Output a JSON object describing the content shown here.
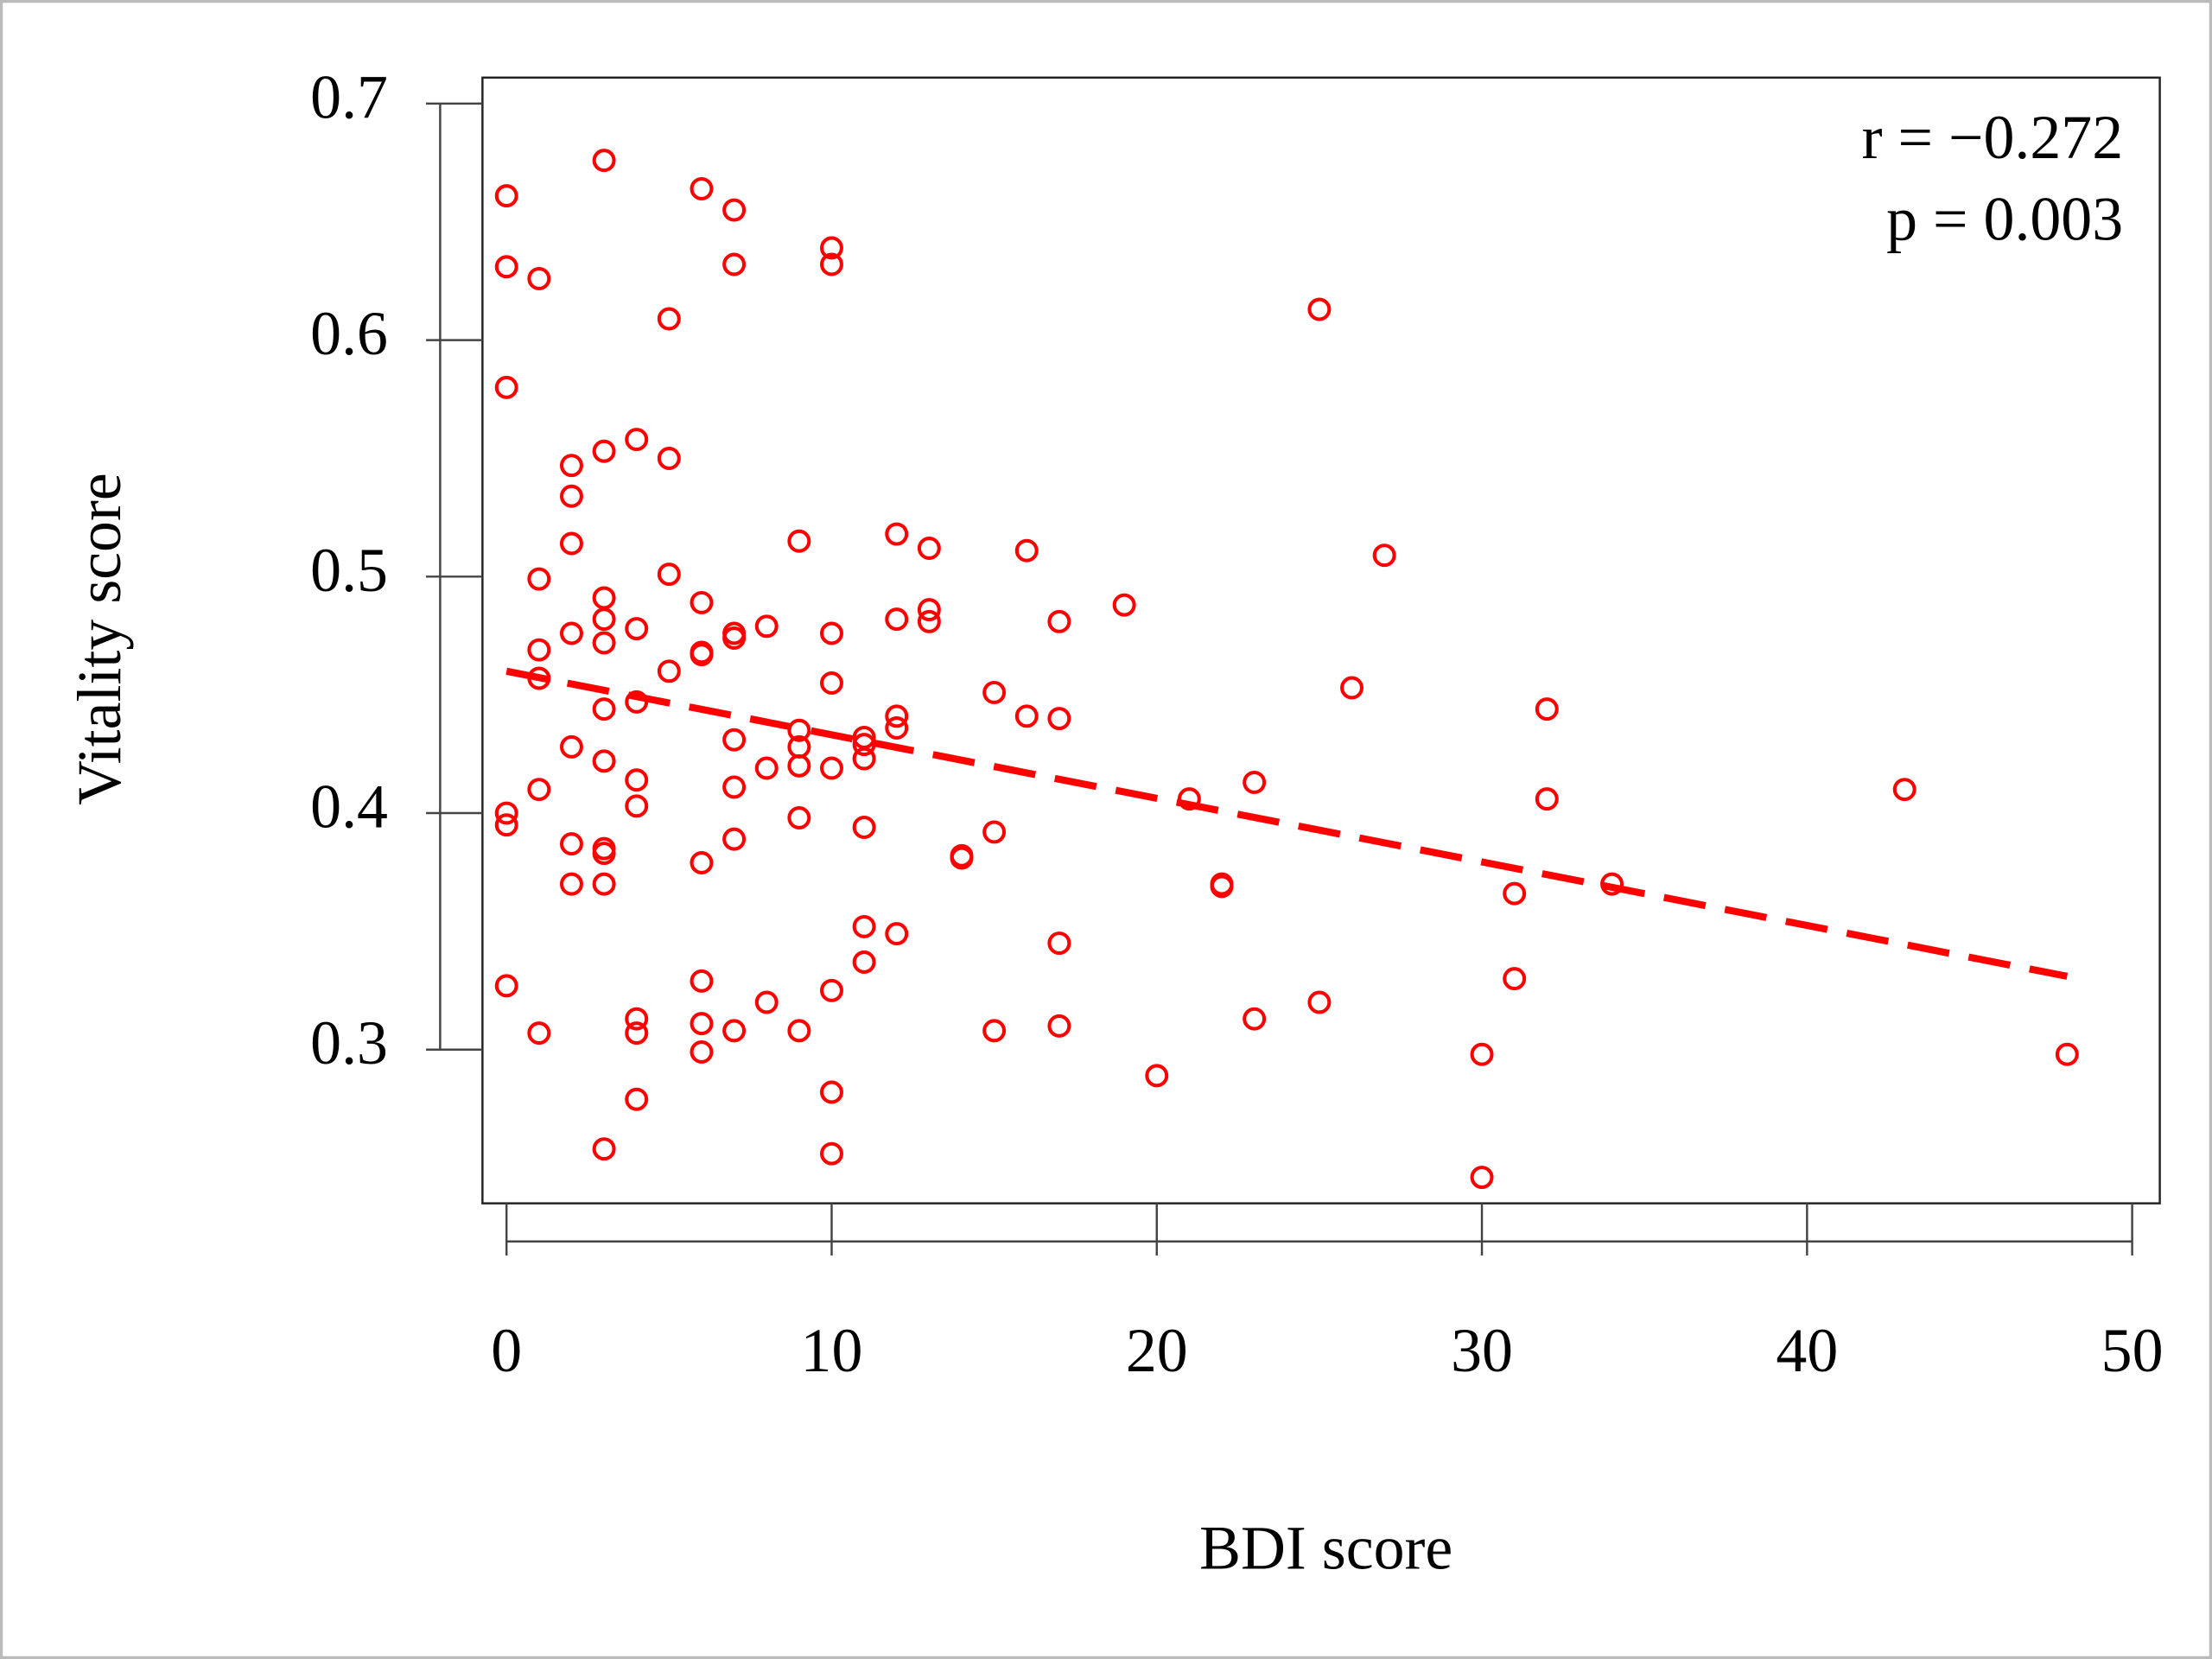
{
  "chart_data": {
    "type": "scatter",
    "x_label": "BDI score",
    "y_label": "Vitality score",
    "annotations": [
      "r = −0.272",
      "p = 0.003"
    ],
    "color": "#ff0000",
    "x": [
      0,
      0,
      0,
      0,
      0,
      0,
      1,
      1,
      1,
      1,
      1,
      1,
      2,
      2,
      2,
      2,
      2,
      2,
      2,
      3,
      3,
      3,
      3,
      3,
      3,
      3,
      3,
      3,
      3,
      3,
      4,
      4,
      4,
      4,
      4,
      4,
      4,
      4,
      5,
      5,
      5,
      5,
      6,
      6,
      6,
      6,
      6,
      6,
      6,
      6,
      7,
      7,
      7,
      7,
      7,
      7,
      7,
      7,
      8,
      8,
      8,
      9,
      9,
      9,
      9,
      9,
      9,
      10,
      10,
      10,
      10,
      10,
      10,
      10,
      10,
      11,
      11,
      11,
      11,
      11,
      11,
      12,
      12,
      12,
      12,
      12,
      13,
      13,
      13,
      14,
      14,
      15,
      15,
      15,
      16,
      16,
      17,
      17,
      17,
      17,
      19,
      20,
      21,
      22,
      22,
      23,
      23,
      25,
      25,
      26,
      27,
      30,
      30,
      31,
      31,
      32,
      32,
      34,
      43,
      48
    ],
    "values": [
      0.661,
      0.631,
      0.58,
      0.4,
      0.395,
      0.327,
      0.626,
      0.499,
      0.469,
      0.457,
      0.41,
      0.307,
      0.547,
      0.534,
      0.514,
      0.476,
      0.428,
      0.387,
      0.37,
      0.676,
      0.553,
      0.491,
      0.482,
      0.472,
      0.444,
      0.422,
      0.385,
      0.383,
      0.37,
      0.258,
      0.558,
      0.478,
      0.447,
      0.414,
      0.403,
      0.313,
      0.307,
      0.279,
      0.609,
      0.55,
      0.501,
      0.46,
      0.664,
      0.489,
      0.468,
      0.467,
      0.379,
      0.329,
      0.311,
      0.299,
      0.655,
      0.632,
      0.476,
      0.474,
      0.431,
      0.411,
      0.389,
      0.308,
      0.479,
      0.419,
      0.32,
      0.515,
      0.435,
      0.428,
      0.42,
      0.398,
      0.308,
      0.639,
      0.632,
      0.476,
      0.455,
      0.419,
      0.325,
      0.282,
      0.256,
      0.432,
      0.429,
      0.423,
      0.394,
      0.352,
      0.337,
      0.518,
      0.482,
      0.441,
      0.436,
      0.349,
      0.512,
      0.486,
      0.481,
      0.382,
      0.381,
      0.451,
      0.392,
      0.308,
      0.511,
      0.441,
      0.481,
      0.44,
      0.345,
      0.31,
      0.488,
      0.289,
      0.406,
      0.37,
      0.369,
      0.413,
      0.313,
      0.613,
      0.32,
      0.453,
      0.509,
      0.298,
      0.246,
      0.366,
      0.33,
      0.444,
      0.406,
      0.37,
      0.41,
      0.298
    ],
    "trendline": {
      "x": [
        0,
        48
      ],
      "values": [
        0.46,
        0.331
      ]
    },
    "xlim": [
      -0.74,
      50.85
    ],
    "ylim": [
      0.235,
      0.711
    ],
    "xticks": [
      0,
      10,
      20,
      30,
      40,
      50
    ],
    "yticks": [
      0.3,
      0.4,
      0.5,
      0.6,
      0.7
    ]
  }
}
